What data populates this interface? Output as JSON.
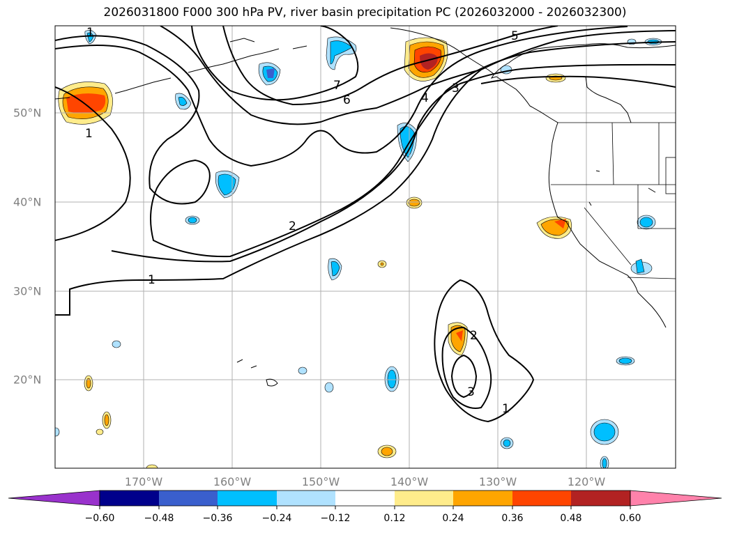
{
  "title": "2026031800 F000 300 hPa PV, river basin precipitation PC (2026032000 - 2026032300)",
  "map": {
    "lon_labels": [
      "170°W",
      "160°W",
      "150°W",
      "140°W",
      "130°W",
      "120°W"
    ],
    "lat_labels": [
      "50°N",
      "40°N",
      "30°N",
      "20°N"
    ],
    "pv_contour_labels": [
      "1",
      "1",
      "2",
      "3",
      "4",
      "5",
      "6",
      "7",
      "1",
      "2",
      "3",
      "1"
    ]
  },
  "colorbar": {
    "ticks": [
      "−0.60",
      "−0.48",
      "−0.36",
      "−0.24",
      "−0.12",
      "0.12",
      "0.24",
      "0.36",
      "0.48",
      "0.60"
    ],
    "colors": [
      "#9932cc",
      "#00008b",
      "#3a5fcd",
      "#00bfff",
      "#b0e2ff",
      "#ffffff",
      "#ffec8b",
      "#ffa500",
      "#ff4500",
      "#b22222",
      "#ff82ab"
    ]
  }
}
